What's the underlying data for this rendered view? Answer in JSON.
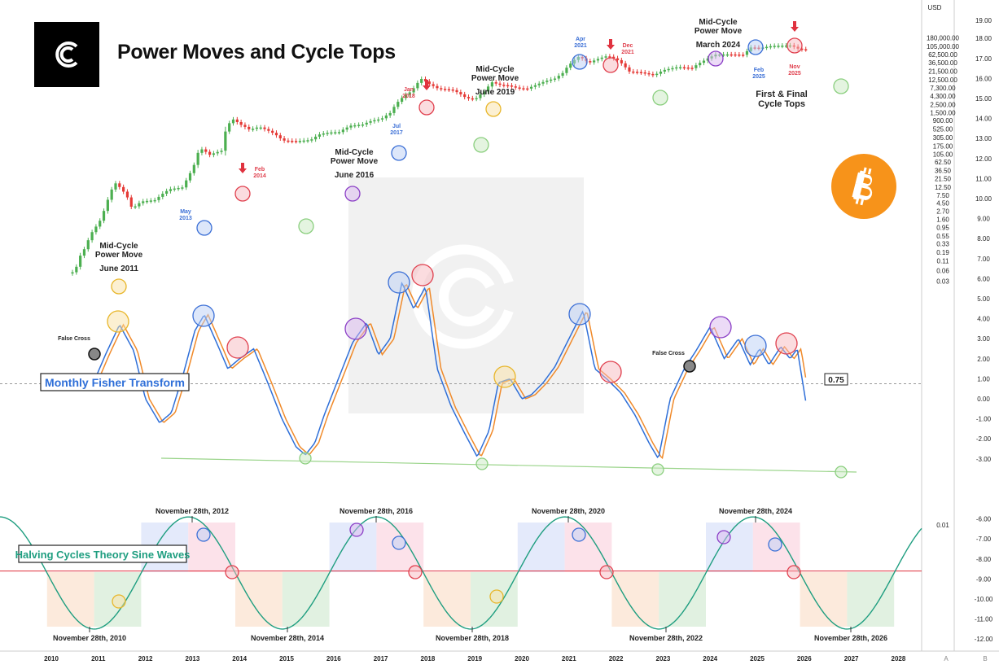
{
  "title": "Power Moves and Cycle Tops",
  "brand_icon": "cycles-c-logo-icon",
  "bitcoin_icon": "bitcoin-icon",
  "colors": {
    "price_up": "#4caf50",
    "price_down": "#e53935",
    "fisher_fast": "#2f6fd8",
    "fisher_slow": "#f08a2a",
    "sine": "#1f9e80",
    "hline": "#e2444f",
    "green_line": "#9ad48a",
    "btc": "#f7931a"
  },
  "chart_data": [
    {
      "type": "line",
      "name": "price",
      "title": "Power Moves and Cycle Tops",
      "scale": "log",
      "currency_label": "USD",
      "yticks": [
        "180,000.00",
        "105,000.00",
        "62,500.00",
        "36,500.00",
        "21,500.00",
        "12,500.00",
        "7,300.00",
        "4,300.00",
        "2,500.00",
        "1,500.00",
        "900.00",
        "525.00",
        "305.00",
        "175.00",
        "105.00",
        "62.50",
        "36.50",
        "21.50",
        "12.50",
        "7.50",
        "4.50",
        "2.70",
        "1.60",
        "0.95",
        "0.55",
        "0.33",
        "0.19",
        "0.11",
        "0.06",
        "0.03",
        "0.01"
      ],
      "x": [
        2010.5,
        2010.6,
        2010.8,
        2010.9,
        2011.0,
        2011.1,
        2011.25,
        2011.45,
        2011.6,
        2011.8,
        2012.0,
        2012.3,
        2012.6,
        2012.9,
        2013.1,
        2013.25,
        2013.45,
        2013.7,
        2013.93,
        2014.1,
        2014.3,
        2014.5,
        2014.8,
        2015.0,
        2015.3,
        2015.6,
        2015.8,
        2016.0,
        2016.2,
        2016.45,
        2016.7,
        2016.9,
        2017.1,
        2017.3,
        2017.55,
        2017.75,
        2017.95,
        2018.1,
        2018.3,
        2018.6,
        2018.9,
        2019.1,
        2019.3,
        2019.45,
        2019.6,
        2019.8,
        2020.0,
        2020.2,
        2020.4,
        2020.6,
        2020.8,
        2020.95,
        2021.1,
        2021.3,
        2021.5,
        2021.7,
        2021.9,
        2022.1,
        2022.35,
        2022.6,
        2022.9,
        2023.1,
        2023.4,
        2023.7,
        2023.95,
        2024.2,
        2024.5,
        2024.8,
        2024.95,
        2025.15,
        2025.4,
        2025.6,
        2025.8,
        2025.95,
        2026.05
      ],
      "values": [
        0.05,
        0.06,
        0.25,
        0.5,
        0.9,
        1.2,
        3.5,
        16,
        10,
        3,
        5,
        5.5,
        11,
        12.5,
        40,
        150,
        100,
        130,
        1000,
        700,
        500,
        600,
        400,
        250,
        240,
        260,
        380,
        420,
        430,
        650,
        700,
        900,
        1000,
        1500,
        4000,
        6000,
        13000,
        9500,
        7000,
        6500,
        3800,
        3600,
        6000,
        10500,
        9000,
        8500,
        7200,
        7000,
        9000,
        11500,
        13500,
        19000,
        33000,
        55000,
        36000,
        47000,
        57000,
        45000,
        21000,
        20000,
        16500,
        23000,
        28000,
        26000,
        42000,
        62000,
        63000,
        61000,
        98000,
        95000,
        108000,
        110000,
        112000,
        91000,
        87000
      ]
    },
    {
      "type": "line",
      "name": "Monthly Fisher Transform",
      "series": [
        {
          "name": "fisher",
          "color": "#2f6fd8"
        },
        {
          "name": "trigger",
          "color": "#f08a2a"
        }
      ],
      "yticks": [
        "4.00",
        "3.00",
        "2.00",
        "1.00",
        "0.00",
        "-1.00",
        "-2.00",
        "-3.00"
      ],
      "reference_level": 0.75,
      "reference_label": "0.75",
      "x": [
        2010.7,
        2010.95,
        2011.15,
        2011.45,
        2011.75,
        2012.0,
        2012.3,
        2012.55,
        2012.8,
        2013.05,
        2013.25,
        2013.55,
        2013.75,
        2014.0,
        2014.3,
        2014.6,
        2014.9,
        2015.2,
        2015.4,
        2015.6,
        2015.8,
        2016.1,
        2016.4,
        2016.7,
        2016.95,
        2017.2,
        2017.45,
        2017.7,
        2017.95,
        2018.2,
        2018.5,
        2018.8,
        2019.05,
        2019.3,
        2019.5,
        2019.75,
        2020.0,
        2020.2,
        2020.45,
        2020.7,
        2021.0,
        2021.3,
        2021.55,
        2021.8,
        2022.1,
        2022.4,
        2022.7,
        2022.9,
        2023.15,
        2023.45,
        2023.7,
        2024.0,
        2024.3,
        2024.6,
        2024.85,
        2025.05,
        2025.25,
        2025.5,
        2025.7,
        2025.85,
        2026.05
      ],
      "values": [
        0.6,
        1.1,
        2.2,
        3.7,
        2.4,
        0.0,
        -1.2,
        -0.7,
        1.2,
        3.4,
        4.2,
        2.6,
        1.5,
        2.0,
        2.5,
        0.8,
        -1.0,
        -2.4,
        -2.8,
        -2.2,
        -0.8,
        1.0,
        2.8,
        3.8,
        2.2,
        3.0,
        5.8,
        4.5,
        5.6,
        1.5,
        -0.4,
        -1.8,
        -2.9,
        -1.6,
        0.8,
        1.0,
        0.0,
        0.2,
        0.8,
        1.6,
        3.0,
        4.4,
        1.5,
        1.0,
        0.3,
        -0.8,
        -2.2,
        -3.0,
        0.0,
        1.5,
        2.4,
        3.6,
        2.0,
        3.0,
        1.7,
        2.5,
        1.7,
        2.6,
        2.0,
        2.5,
        -0.4
      ]
    },
    {
      "type": "line",
      "name": "Halving Cycles Theory Sine Waves",
      "yticks": [
        "-6.00",
        "-7.00",
        "-8.00",
        "-9.00",
        "-10.00",
        "-11.00",
        "-12.00"
      ],
      "period_years": 4,
      "phase_min_year": 2010.91,
      "horizontal_line_value": -8.6,
      "range": [
        -11.5,
        -5.9
      ]
    }
  ],
  "x_axis": {
    "labels": [
      "2010",
      "2011",
      "2012",
      "2013",
      "2014",
      "2015",
      "2016",
      "2017",
      "2018",
      "2019",
      "2020",
      "2021",
      "2022",
      "2023",
      "2024",
      "2025",
      "2026",
      "2027",
      "2028"
    ],
    "corner_labels": [
      "A",
      "B"
    ]
  },
  "labels": {
    "fisher_transform": "Monthly Fisher Transform",
    "sine_waves": "Halving Cycles Theory Sine Waves",
    "first_final": "First & Final Cycle Tops"
  },
  "mid_cycle": [
    {
      "line1": "Mid-Cycle",
      "line2": "Power Move",
      "date": "June 2011"
    },
    {
      "line1": "Mid-Cycle",
      "line2": "Power Move",
      "date": "June 2016"
    },
    {
      "line1": "Mid-Cycle",
      "line2": "Power Move",
      "date": "June 2019"
    },
    {
      "line1": "Mid-Cycle",
      "line2": "Power Move",
      "date": "March 2024"
    }
  ],
  "top_markers": [
    {
      "month": "May",
      "year": "2013",
      "kind": "first"
    },
    {
      "month": "Feb",
      "year": "2014",
      "kind": "final"
    },
    {
      "month": "Jul",
      "year": "2017",
      "kind": "first"
    },
    {
      "month": "Jan",
      "year": "2018",
      "kind": "final"
    },
    {
      "month": "Apr",
      "year": "2021",
      "kind": "first"
    },
    {
      "month": "Dec",
      "year": "2021",
      "kind": "final"
    },
    {
      "month": "Feb",
      "year": "2025",
      "kind": "first"
    },
    {
      "month": "Nov",
      "year": "2025",
      "kind": "final"
    }
  ],
  "false_cross": [
    "False Cross",
    "False Cross"
  ],
  "halving_dates": {
    "top": [
      "November 28th, 2012",
      "November 28th, 2016",
      "November 28th, 2020",
      "November 28th, 2024"
    ],
    "bottom": [
      "November 28th, 2010",
      "November 28th, 2014",
      "November 28th, 2018",
      "November 28th, 2022",
      "November 28th, 2026"
    ]
  }
}
